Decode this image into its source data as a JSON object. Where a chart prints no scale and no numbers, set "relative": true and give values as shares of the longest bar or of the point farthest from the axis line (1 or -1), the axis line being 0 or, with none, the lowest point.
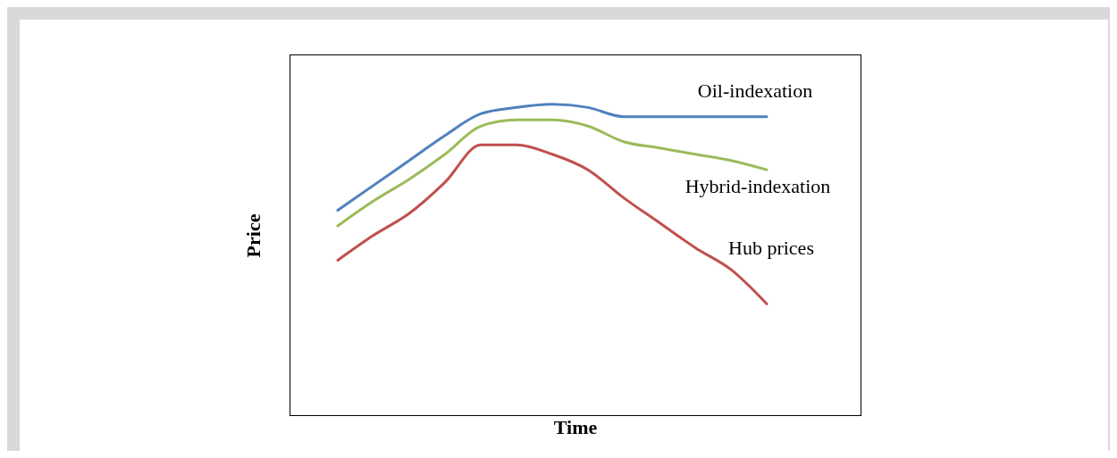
{
  "chart_data": {
    "type": "line",
    "relative": true,
    "xlabel": "Time",
    "ylabel": "Price",
    "categories": [
      null,
      null,
      null,
      null,
      null,
      null,
      null,
      null,
      null,
      null,
      null,
      null,
      null
    ],
    "series": [
      {
        "name": "Oil-indexation",
        "color": "#4f81bd",
        "values": [
          0.66,
          0.74,
          0.82,
          0.9,
          0.97,
          0.99,
          1,
          0.99,
          0.96,
          0.96,
          0.96,
          0.96,
          0.96
        ]
      },
      {
        "name": "Hybrid-indexation",
        "color": "#9bbb59",
        "values": [
          0.61,
          0.69,
          0.76,
          0.84,
          0.93,
          0.95,
          0.95,
          0.93,
          0.88,
          0.86,
          0.84,
          0.82,
          0.79
        ]
      },
      {
        "name": "Hub prices",
        "color": "#c0504d",
        "values": [
          0.5,
          0.58,
          0.65,
          0.75,
          0.87,
          0.87,
          0.84,
          0.79,
          0.7,
          0.62,
          0.54,
          0.47,
          0.36
        ]
      }
    ]
  }
}
